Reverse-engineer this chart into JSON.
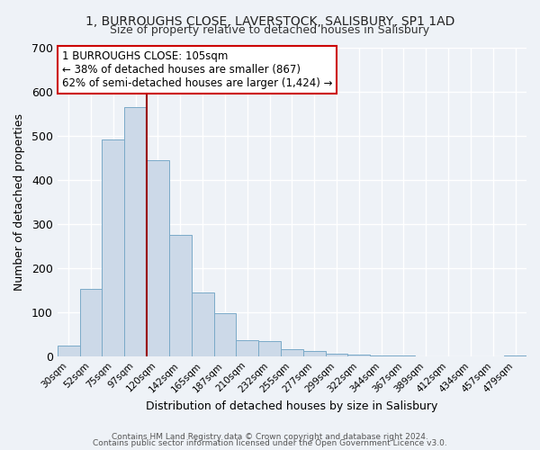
{
  "title": "1, BURROUGHS CLOSE, LAVERSTOCK, SALISBURY, SP1 1AD",
  "subtitle": "Size of property relative to detached houses in Salisbury",
  "xlabel": "Distribution of detached houses by size in Salisbury",
  "ylabel": "Number of detached properties",
  "bar_color": "#ccd9e8",
  "bar_edge_color": "#7aaac8",
  "categories": [
    "30sqm",
    "52sqm",
    "75sqm",
    "97sqm",
    "120sqm",
    "142sqm",
    "165sqm",
    "187sqm",
    "210sqm",
    "232sqm",
    "255sqm",
    "277sqm",
    "299sqm",
    "322sqm",
    "344sqm",
    "367sqm",
    "389sqm",
    "412sqm",
    "434sqm",
    "457sqm",
    "479sqm"
  ],
  "values": [
    25,
    152,
    492,
    565,
    445,
    275,
    144,
    98,
    36,
    35,
    15,
    11,
    5,
    3,
    2,
    1,
    0,
    0,
    0,
    0,
    2
  ],
  "ylim": [
    0,
    700
  ],
  "yticks": [
    0,
    100,
    200,
    300,
    400,
    500,
    600,
    700
  ],
  "vline_x": 3.5,
  "vline_color": "#990000",
  "annotation_line1": "1 BURROUGHS CLOSE: 105sqm",
  "annotation_line2": "← 38% of detached houses are smaller (867)",
  "annotation_line3": "62% of semi-detached houses are larger (1,424) →",
  "annotation_box_facecolor": "#ffffff",
  "annotation_box_edgecolor": "#cc0000",
  "footer1": "Contains HM Land Registry data © Crown copyright and database right 2024.",
  "footer2": "Contains public sector information licensed under the Open Government Licence v3.0.",
  "background_color": "#eef2f7",
  "grid_color": "#ffffff"
}
